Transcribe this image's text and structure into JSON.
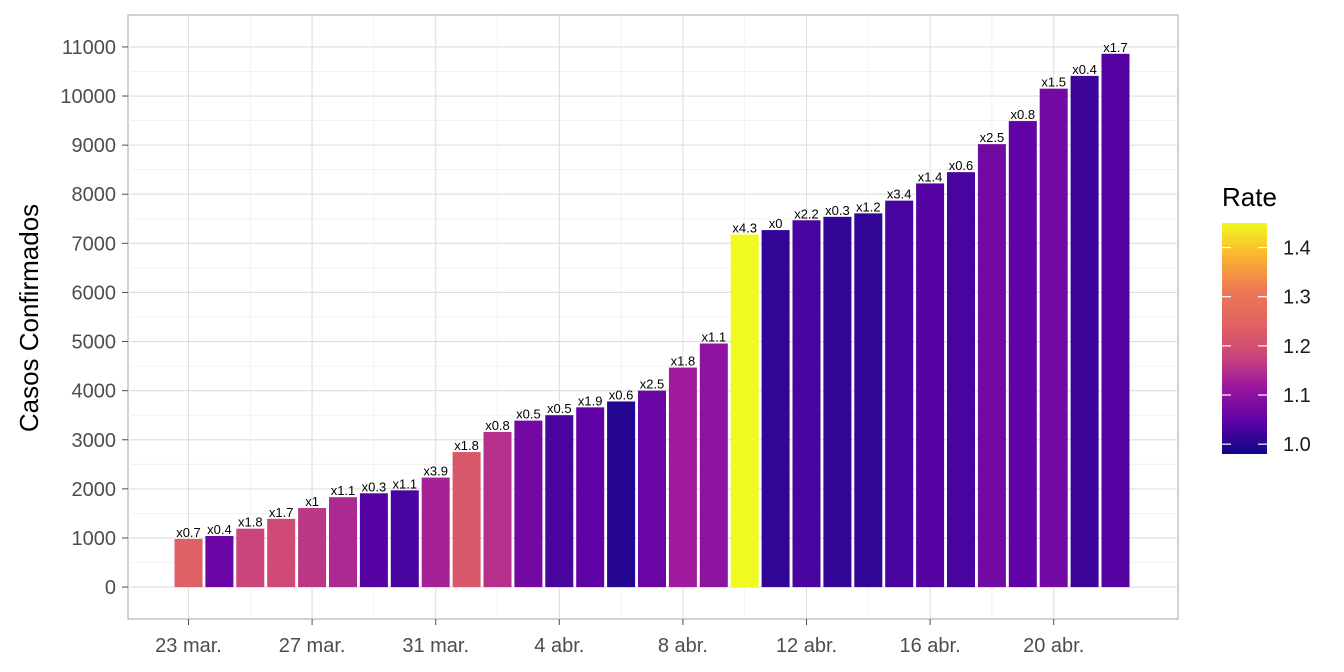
{
  "chart_data": {
    "type": "bar",
    "title": "",
    "xlabel": "",
    "ylabel": "Casos Confirmados",
    "ylim": [
      -650,
      11650
    ],
    "yticks": [
      0,
      1000,
      2000,
      3000,
      4000,
      5000,
      6000,
      7000,
      8000,
      9000,
      10000,
      11000
    ],
    "xticks": [
      "23 mar.",
      "27 mar.",
      "31 mar.",
      "4 abr.",
      "8 abr.",
      "12 abr.",
      "16 abr.",
      "20 abr."
    ],
    "grid": true,
    "legend_position": "right",
    "legend": {
      "title": "Rate",
      "scale": "plasma",
      "range": [
        0.98,
        1.45
      ],
      "ticks": [
        "1.0",
        "1.1",
        "1.2",
        "1.3",
        "1.4"
      ]
    },
    "categories": [
      "23 mar.",
      "24 mar.",
      "25 mar.",
      "26 mar.",
      "27 mar.",
      "28 mar.",
      "29 mar.",
      "30 mar.",
      "31 mar.",
      "1 abr.",
      "2 abr.",
      "3 abr.",
      "4 abr.",
      "5 abr.",
      "6 abr.",
      "7 abr.",
      "8 abr.",
      "9 abr.",
      "10 abr.",
      "11 abr.",
      "12 abr.",
      "13 abr.",
      "14 abr.",
      "15 abr.",
      "16 abr.",
      "17 abr.",
      "18 abr.",
      "19 abr.",
      "20 abr.",
      "21 abr.",
      "22 abr."
    ],
    "values": [
      980,
      1040,
      1190,
      1390,
      1610,
      1830,
      1910,
      1970,
      2230,
      2750,
      3160,
      3390,
      3500,
      3660,
      3780,
      4000,
      4470,
      4960,
      7180,
      7270,
      7470,
      7540,
      7610,
      7870,
      8220,
      8450,
      9020,
      9490,
      10150,
      10410,
      10860
    ],
    "rates": [
      1.24,
      1.06,
      1.18,
      1.19,
      1.16,
      1.14,
      1.04,
      1.03,
      1.13,
      1.22,
      1.15,
      1.07,
      1.03,
      1.05,
      1.0,
      1.06,
      1.12,
      1.1,
      1.45,
      1.01,
      1.03,
      1.01,
      1.01,
      1.03,
      1.04,
      1.03,
      1.07,
      1.05,
      1.07,
      1.02,
      1.04
    ],
    "labels": [
      "x0.7",
      "x0.4",
      "x1.8",
      "x1.7",
      "x1",
      "x1.1",
      "x0.3",
      "x1.1",
      "x3.9",
      "x1.8",
      "x0.8",
      "x0.5",
      "x0.5",
      "x1.9",
      "x0.6",
      "x2.5",
      "x1.8",
      "x1.1",
      "x4.3",
      "x0",
      "x2.2",
      "x0.3",
      "x1.2",
      "x3.4",
      "x1.4",
      "x0.6",
      "x2.5",
      "x0.8",
      "x1.5",
      "x0.4",
      "x1.7"
    ]
  }
}
